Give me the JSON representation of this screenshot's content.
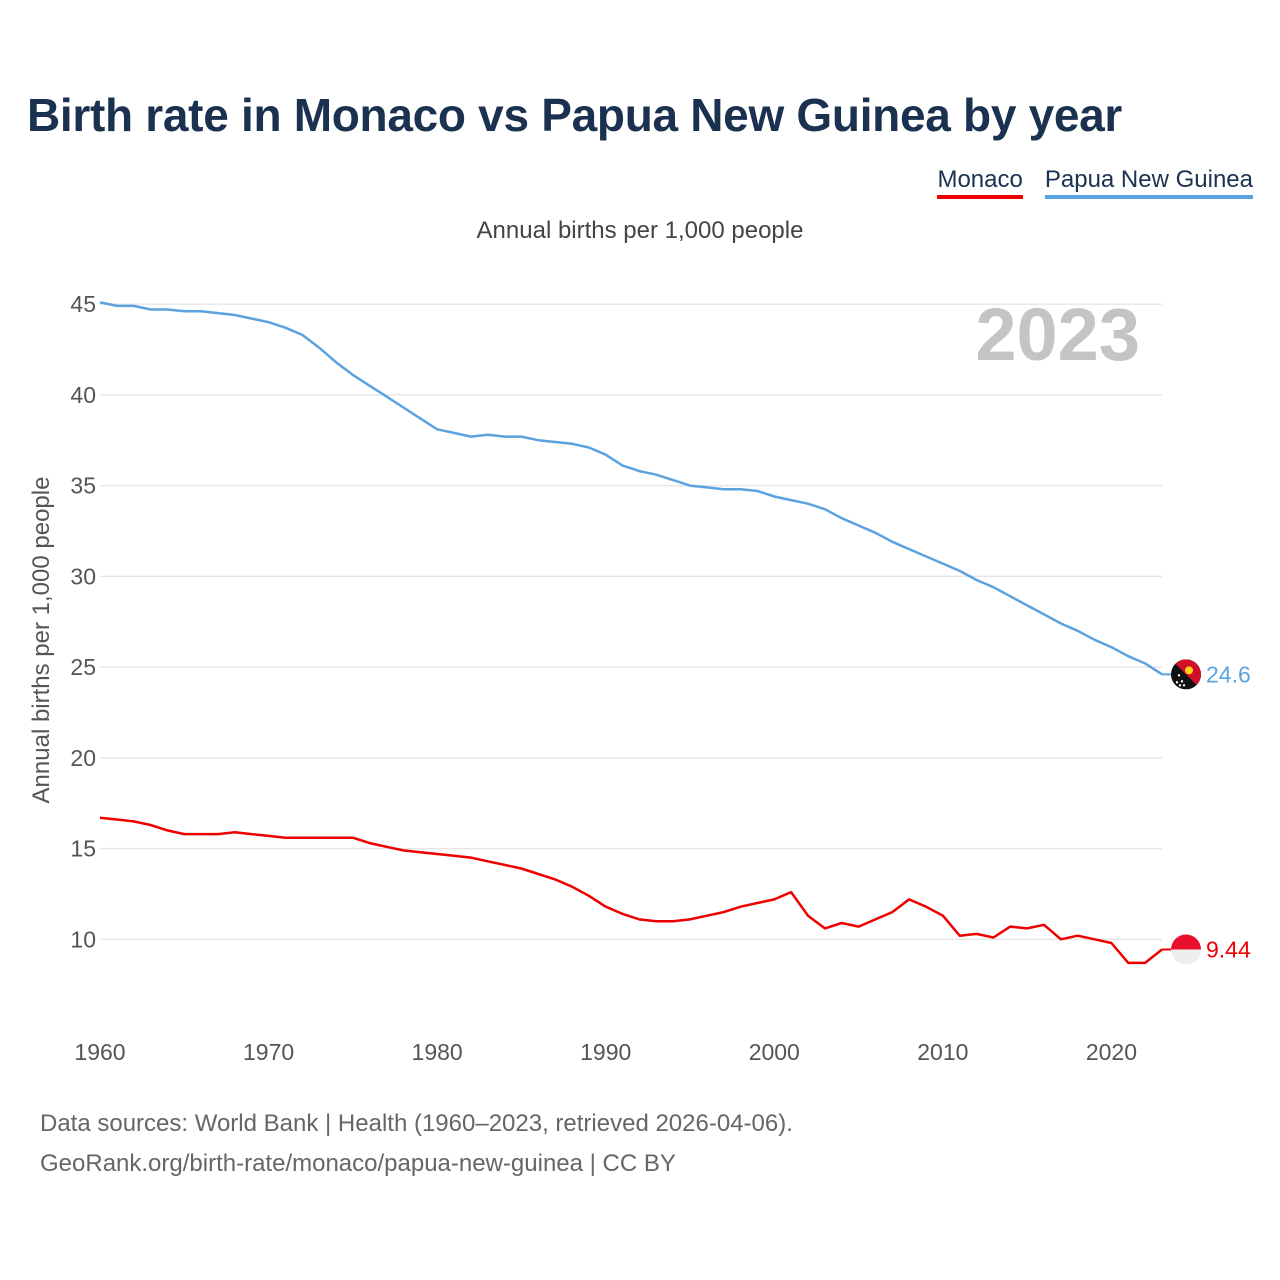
{
  "title": "Birth rate in Monaco vs Papua New Guinea by year",
  "subtitle": "Annual births per 1,000 people",
  "legend": [
    {
      "label": "Monaco",
      "color": "#ee0000"
    },
    {
      "label": "Papua New Guinea",
      "color": "#5aa3e0"
    }
  ],
  "footer": {
    "line1": "Data sources: World Bank | Health (1960–2023, retrieved 2026-04-06).",
    "line2": "GeoRank.org/birth-rate/monaco/papua-new-guinea | CC BY"
  },
  "chart_data": {
    "type": "line",
    "title": "Birth rate in Monaco vs Papua New Guinea by year",
    "ylabel": "Annual births per 1,000 people",
    "xlabel": "",
    "year_label": "2023",
    "xlim": [
      1960,
      2023
    ],
    "ylim": [
      5.5,
      45.5
    ],
    "xticks": [
      1960,
      1970,
      1980,
      1990,
      2000,
      2010,
      2020
    ],
    "yticks": [
      10,
      15,
      20,
      25,
      30,
      35,
      40,
      45
    ],
    "grid": true,
    "x": [
      1960,
      1961,
      1962,
      1963,
      1964,
      1965,
      1966,
      1967,
      1968,
      1969,
      1970,
      1971,
      1972,
      1973,
      1974,
      1975,
      1976,
      1977,
      1978,
      1979,
      1980,
      1981,
      1982,
      1983,
      1984,
      1985,
      1986,
      1987,
      1988,
      1989,
      1990,
      1991,
      1992,
      1993,
      1994,
      1995,
      1996,
      1997,
      1998,
      1999,
      2000,
      2001,
      2002,
      2003,
      2004,
      2005,
      2006,
      2007,
      2008,
      2009,
      2010,
      2011,
      2012,
      2013,
      2014,
      2015,
      2016,
      2017,
      2018,
      2019,
      2020,
      2021,
      2022,
      2023
    ],
    "series": [
      {
        "name": "Monaco",
        "color": "#ee0000",
        "end_label": "9.44",
        "values": [
          16.7,
          16.6,
          16.5,
          16.3,
          16.0,
          15.8,
          15.8,
          15.8,
          15.9,
          15.8,
          15.7,
          15.6,
          15.6,
          15.6,
          15.6,
          15.6,
          15.3,
          15.1,
          14.9,
          14.8,
          14.7,
          14.6,
          14.5,
          14.3,
          14.1,
          13.9,
          13.6,
          13.3,
          12.9,
          12.4,
          11.8,
          11.4,
          11.1,
          11.0,
          11.0,
          11.1,
          11.3,
          11.5,
          11.8,
          12.0,
          12.2,
          12.6,
          11.3,
          10.6,
          10.9,
          10.7,
          11.1,
          11.5,
          12.2,
          11.8,
          11.3,
          10.2,
          10.3,
          10.1,
          10.7,
          10.6,
          10.8,
          10.0,
          10.2,
          10.0,
          9.8,
          8.7,
          8.7,
          9.44
        ]
      },
      {
        "name": "Papua New Guinea",
        "color": "#5aa3e0",
        "end_label": "24.6",
        "values": [
          45.1,
          44.9,
          44.9,
          44.7,
          44.7,
          44.6,
          44.6,
          44.5,
          44.4,
          44.2,
          44.0,
          43.7,
          43.3,
          42.6,
          41.8,
          41.1,
          40.5,
          39.9,
          39.3,
          38.7,
          38.1,
          37.9,
          37.7,
          37.8,
          37.7,
          37.7,
          37.5,
          37.4,
          37.3,
          37.1,
          36.7,
          36.1,
          35.8,
          35.6,
          35.3,
          35.0,
          34.9,
          34.8,
          34.8,
          34.7,
          34.4,
          34.2,
          34.0,
          33.7,
          33.2,
          32.8,
          32.4,
          31.9,
          31.5,
          31.1,
          30.7,
          30.3,
          29.8,
          29.4,
          28.9,
          28.4,
          27.9,
          27.4,
          27.0,
          26.5,
          26.1,
          25.6,
          25.2,
          24.6
        ]
      }
    ]
  }
}
